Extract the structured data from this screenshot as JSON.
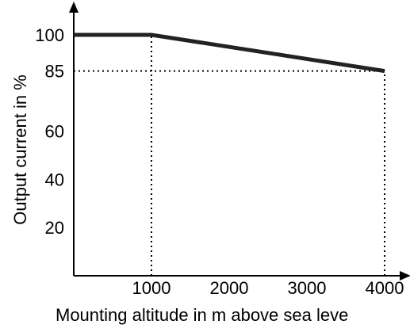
{
  "chart_data": {
    "type": "line",
    "title": "",
    "xlabel": "Mounting altitude in m above sea leve",
    "ylabel": "Output current in %",
    "x_ticks": [
      1000,
      2000,
      3000,
      4000
    ],
    "y_ticks": [
      20,
      40,
      60,
      85,
      100
    ],
    "xlim": [
      0,
      4000
    ],
    "ylim": [
      0,
      100
    ],
    "grid": false,
    "series": [
      {
        "x": [
          0,
          1000,
          4000
        ],
        "y": [
          100,
          100,
          85
        ]
      }
    ],
    "reference_lines": [
      {
        "orientation": "vertical",
        "x": 1000,
        "y_from": 0,
        "y_to": 100
      },
      {
        "orientation": "vertical",
        "x": 4000,
        "y_from": 0,
        "y_to": 85
      },
      {
        "orientation": "horizontal",
        "y": 85,
        "x_from": 0,
        "x_to": 4000
      }
    ],
    "colors": {
      "line": "#222222",
      "axis": "#000000"
    }
  }
}
